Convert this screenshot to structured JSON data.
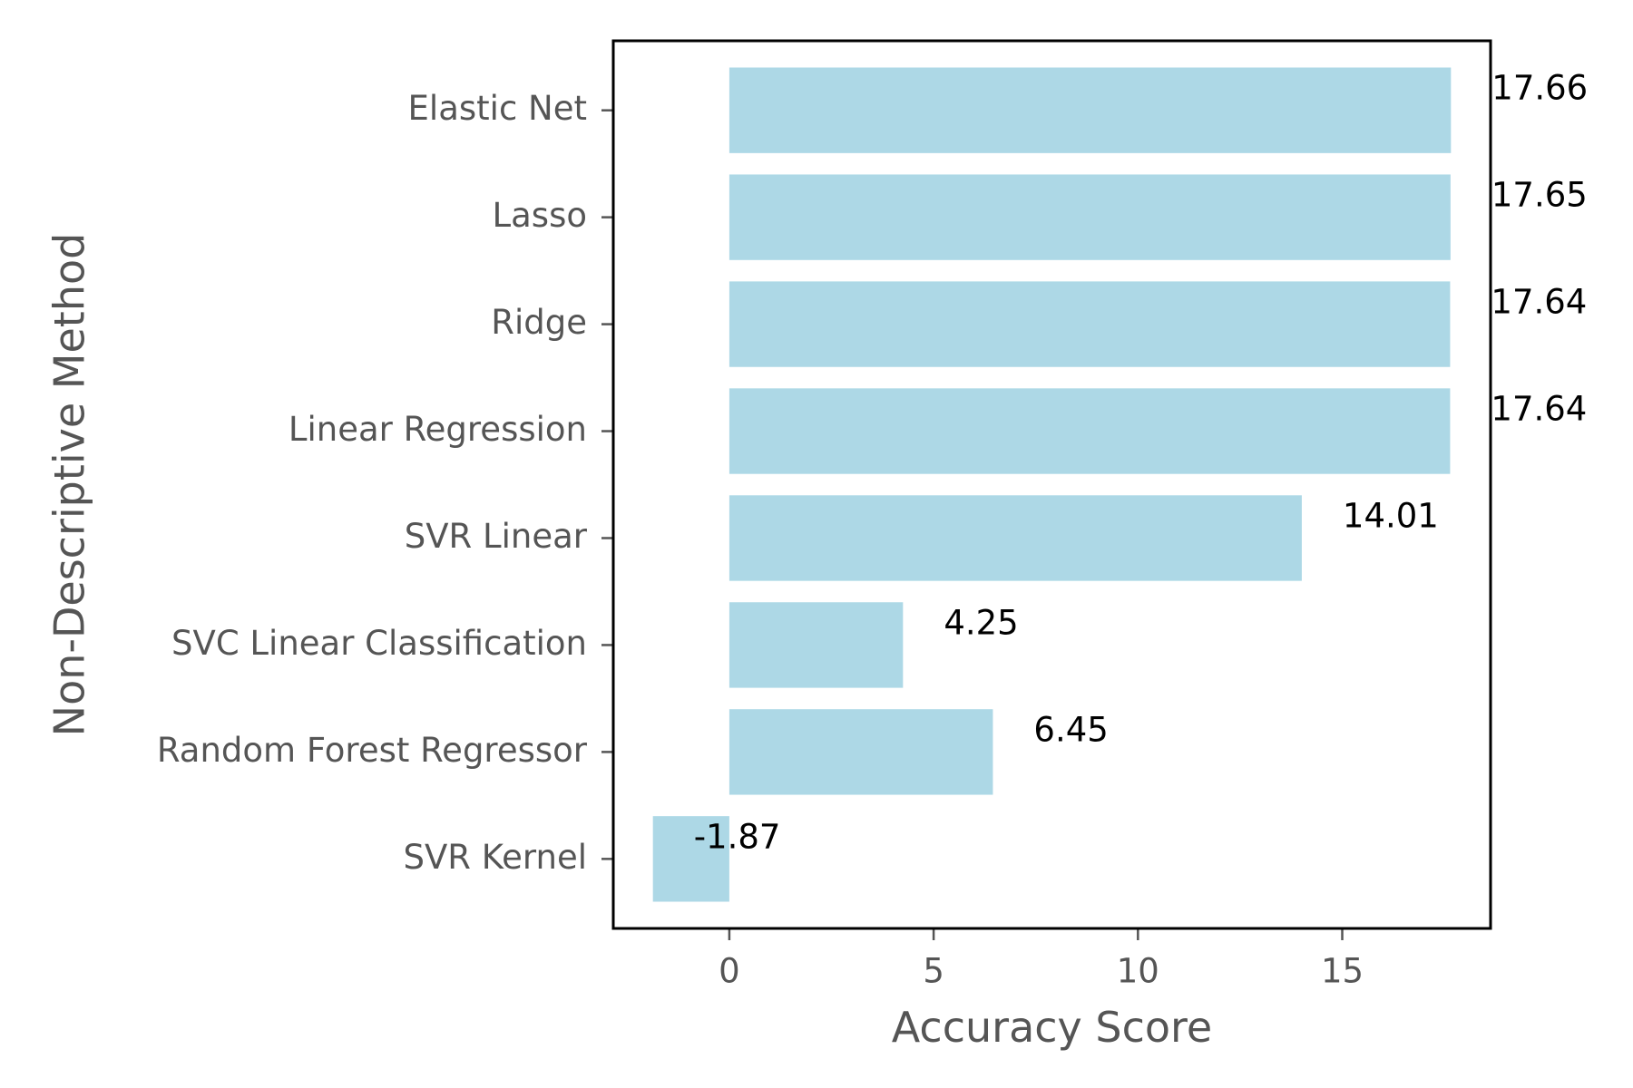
{
  "chart_data": {
    "type": "bar",
    "orientation": "horizontal",
    "categories": [
      "Elastic Net",
      "Lasso",
      "Ridge",
      "Linear Regression",
      "SVR Linear",
      "SVC Linear Classification",
      "Random Forest Regressor",
      "SVR Kernel"
    ],
    "values": [
      17.66,
      17.65,
      17.64,
      17.64,
      14.01,
      4.25,
      6.45,
      -1.87
    ],
    "data_labels": [
      "17.66",
      "17.65",
      "17.64",
      "17.64",
      "14.01",
      "4.25",
      "6.45",
      "-1.87"
    ],
    "xlabel": "Accuracy Score",
    "ylabel": "Non-Descriptive Method",
    "xlim": [
      -2.84,
      18.63
    ],
    "xticks": [
      0,
      5,
      10,
      15
    ],
    "xtick_labels": [
      "0",
      "5",
      "10",
      "15"
    ],
    "grid": false,
    "bar_color": "#add8e6"
  }
}
